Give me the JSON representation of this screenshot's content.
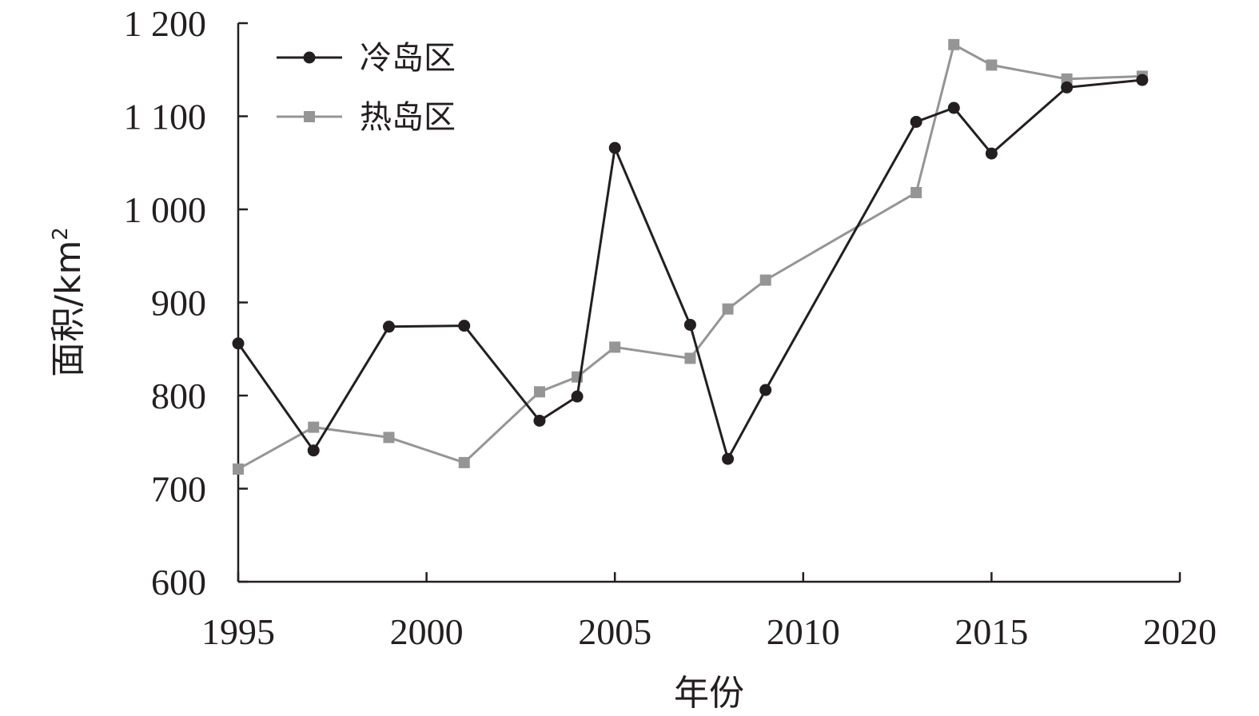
{
  "chart_data": {
    "type": "line",
    "xlabel": "年份",
    "ylabel": "面积/km",
    "ylabel_sup": "2",
    "xlim": [
      1995,
      2020
    ],
    "ylim": [
      600,
      1200
    ],
    "x_ticks": [
      1995,
      2000,
      2005,
      2010,
      2015,
      2020
    ],
    "x_tick_labels": [
      "1995",
      "2000",
      "2005",
      "2010",
      "2015",
      "2020"
    ],
    "y_ticks": [
      600,
      700,
      800,
      900,
      1000,
      1100,
      1200
    ],
    "y_tick_labels": [
      "600",
      "700",
      "800",
      "900",
      "1 000",
      "1 100",
      "1 200"
    ],
    "legend_position": "top-left",
    "grid": false,
    "series": [
      {
        "name": "冷岛区",
        "color": "#231f20",
        "marker": "circle",
        "x": [
          1995,
          1997,
          1999,
          2001,
          2003,
          2004,
          2005,
          2007,
          2008,
          2009,
          2013,
          2014,
          2015,
          2017,
          2019
        ],
        "y": [
          856,
          741,
          874,
          875,
          773,
          799,
          1066,
          876,
          732,
          806,
          1094,
          1109,
          1060,
          1131,
          1139
        ]
      },
      {
        "name": "热岛区",
        "color": "#959595",
        "marker": "square",
        "x": [
          1995,
          1997,
          1999,
          2001,
          2003,
          2004,
          2005,
          2007,
          2008,
          2009,
          2013,
          2014,
          2015,
          2017,
          2019
        ],
        "y": [
          721,
          766,
          755,
          728,
          804,
          820,
          852,
          840,
          893,
          924,
          1018,
          1177,
          1155,
          1140,
          1143
        ]
      }
    ]
  }
}
